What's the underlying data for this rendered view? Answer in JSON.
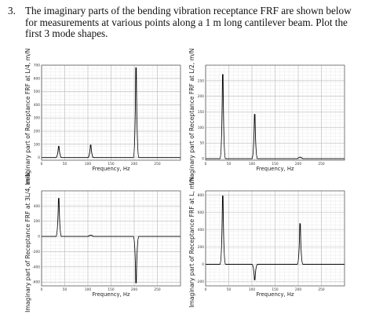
{
  "question": {
    "number": "3.",
    "text": "The imaginary parts of the bending vibration receptance FRF are shown below for measurements at various points along a 1 m long cantilever beam. Plot the first 3 mode shapes."
  },
  "colors": {
    "line": "#000000",
    "grid_major": "#bdbdbd",
    "grid_minor": "#e6e6e6",
    "frame": "#444444"
  },
  "chart_data": [
    {
      "type": "line",
      "ylabel": "Imaginary part of Receptance FRF at L/4, m/N",
      "xlabel": "Frequency, Hz",
      "xlim": [
        0,
        300
      ],
      "ylim": [
        -20,
        700
      ],
      "xticks": [
        0,
        50,
        100,
        150,
        200,
        250
      ],
      "yticks": [
        0,
        100,
        200,
        300,
        400,
        500,
        600,
        700
      ],
      "grid": true,
      "peaks": [
        {
          "x": 37,
          "y": 85
        },
        {
          "x": 106,
          "y": 95
        },
        {
          "x": 204,
          "y": 680
        }
      ]
    },
    {
      "type": "line",
      "ylabel": "Imaginary part of Receptance FRF at L/2, m/N",
      "xlabel": "Frequency, Hz",
      "xlim": [
        0,
        300
      ],
      "ylim": [
        -5,
        300
      ],
      "xticks": [
        0,
        50,
        100,
        150,
        200,
        250
      ],
      "yticks": [
        0,
        50,
        100,
        150,
        200,
        250
      ],
      "grid": true,
      "peaks": [
        {
          "x": 37,
          "y": 270
        },
        {
          "x": 106,
          "y": 142
        },
        {
          "x": 204,
          "y": 5
        }
      ]
    },
    {
      "type": "line",
      "ylabel": "Imaginary part of Receptance FRF at 3L/4, m/N",
      "xlabel": "Frequency, Hz",
      "xlim": [
        0,
        300
      ],
      "ylim": [
        -650,
        600
      ],
      "xticks": [
        0,
        50,
        100,
        150,
        200,
        250
      ],
      "yticks": [
        -600,
        -400,
        -200,
        0,
        200,
        400
      ],
      "grid": true,
      "peaks": [
        {
          "x": 37,
          "y": 500
        },
        {
          "x": 106,
          "y": 15
        },
        {
          "x": 204,
          "y": -610
        }
      ]
    },
    {
      "type": "line",
      "ylabel": "Imaginary part of Receptance FRF at L, m/N",
      "xlabel": "Frequency, Hz",
      "xlim": [
        0,
        300
      ],
      "ylim": [
        -250,
        850
      ],
      "xticks": [
        0,
        50,
        100,
        150,
        200,
        250
      ],
      "yticks": [
        -200,
        0,
        200,
        400,
        600,
        800
      ],
      "grid": true,
      "peaks": [
        {
          "x": 37,
          "y": 790
        },
        {
          "x": 106,
          "y": -180
        },
        {
          "x": 204,
          "y": 470
        }
      ]
    }
  ]
}
